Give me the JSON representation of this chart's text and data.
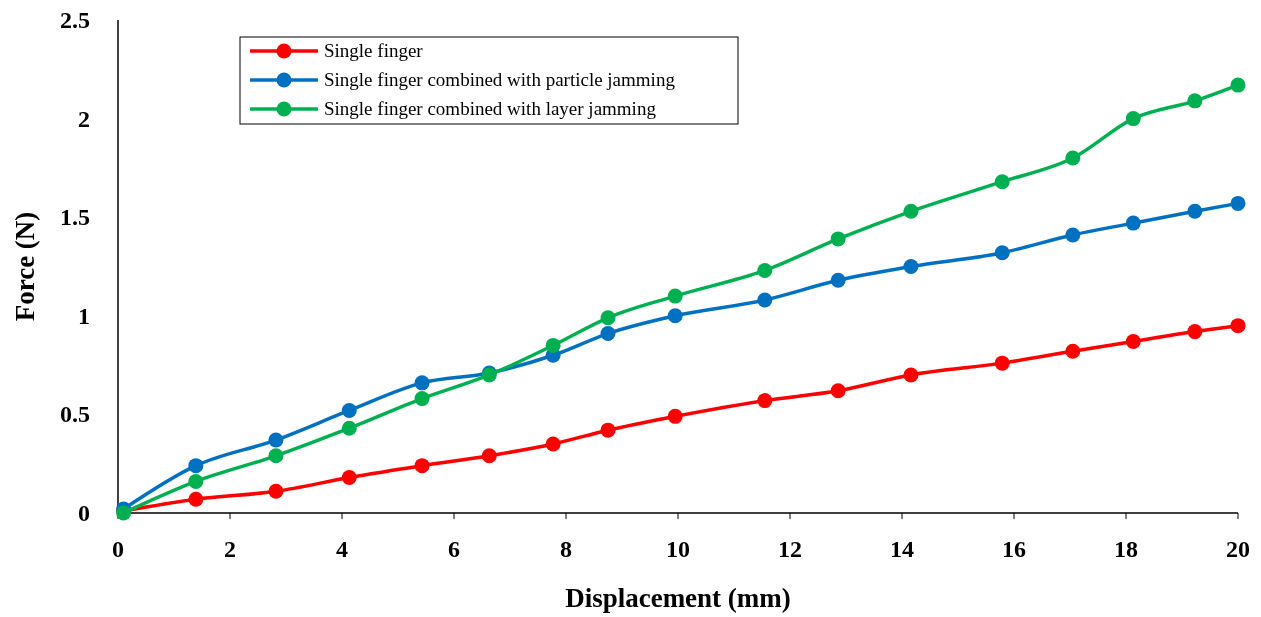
{
  "chart_data": {
    "type": "line",
    "xlabel": "Displacement (mm)",
    "ylabel": "Force (N)",
    "xlim": [
      0,
      20
    ],
    "xticks": [
      0,
      2,
      4,
      6,
      8,
      10,
      12,
      14,
      16,
      18,
      20
    ],
    "ylim": [
      0,
      2.5
    ],
    "yticks": [
      0,
      0.5,
      1,
      1.5,
      2,
      2.5
    ],
    "grid": false,
    "legend": "top left",
    "marker": "circle",
    "line_style": "solid",
    "series": [
      {
        "name": "Single finger",
        "color": "#ff0000",
        "x": [
          0.1,
          1.39,
          2.82,
          4.13,
          5.43,
          6.63,
          7.77,
          8.75,
          9.95,
          11.55,
          12.86,
          14.16,
          15.79,
          17.05,
          18.13,
          19.23,
          20
        ],
        "values": [
          0.01,
          0.07,
          0.11,
          0.18,
          0.24,
          0.29,
          0.35,
          0.42,
          0.49,
          0.57,
          0.62,
          0.7,
          0.76,
          0.82,
          0.87,
          0.92,
          0.95
        ]
      },
      {
        "name": "Single finger combined with particle jamming",
        "color": "#0070c0",
        "x": [
          0.1,
          1.39,
          2.82,
          4.13,
          5.43,
          6.63,
          7.77,
          8.75,
          9.95,
          11.55,
          12.86,
          14.16,
          15.79,
          17.05,
          18.13,
          19.23,
          20
        ],
        "values": [
          0.02,
          0.24,
          0.37,
          0.52,
          0.66,
          0.71,
          0.8,
          0.91,
          1.0,
          1.08,
          1.18,
          1.25,
          1.32,
          1.41,
          1.47,
          1.53,
          1.57
        ]
      },
      {
        "name": "Single finger combined with layer jamming",
        "color": "#00b050",
        "x": [
          0.1,
          1.39,
          2.82,
          4.13,
          5.43,
          6.63,
          7.77,
          8.75,
          9.95,
          11.55,
          12.86,
          14.16,
          15.79,
          17.05,
          18.13,
          19.23,
          20
        ],
        "values": [
          0,
          0.16,
          0.29,
          0.43,
          0.58,
          0.7,
          0.85,
          0.99,
          1.1,
          1.23,
          1.39,
          1.53,
          1.68,
          1.8,
          2.0,
          2.09,
          2.17
        ]
      }
    ]
  }
}
